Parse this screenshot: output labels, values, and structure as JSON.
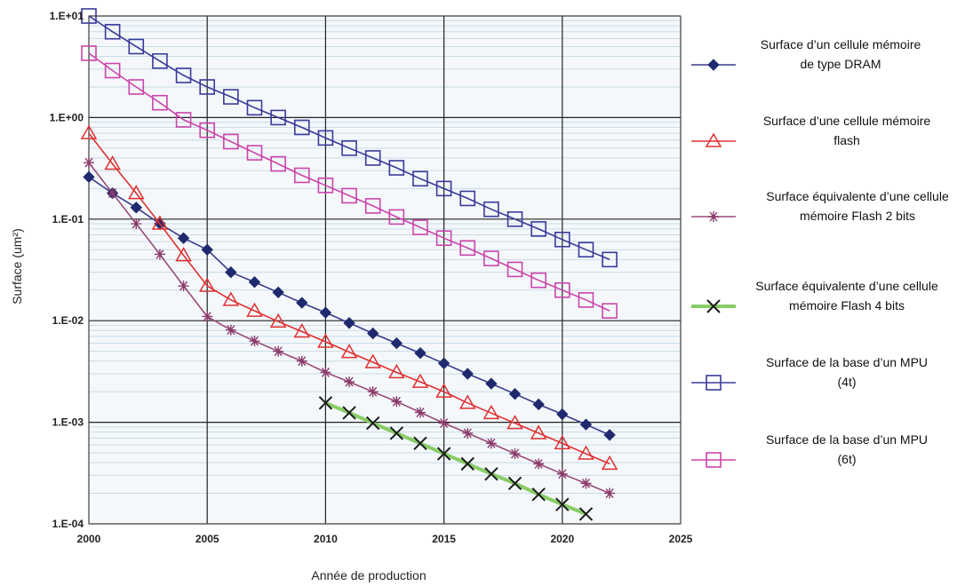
{
  "chart_data": {
    "type": "line",
    "xlabel": "Année de production",
    "ylabel": "Surface (um²)",
    "x_ticks": [
      2000,
      2005,
      2010,
      2015,
      2020,
      2025
    ],
    "y_ticks": [
      "1.E-04",
      "1.E-03",
      "1.E-02",
      "1.E-01",
      "1.E+00",
      "1.E+01"
    ],
    "xlim": [
      2000,
      2025
    ],
    "ylim": [
      0.0001,
      10
    ],
    "y_scale": "log",
    "grid": true,
    "legend_position": "right",
    "series": [
      {
        "name_lines": [
          "Surface d’un cellule mémoire",
          "de type DRAM"
        ],
        "color": "#1f2a6e",
        "marker": "diamond",
        "line_color": "#3a3a8a",
        "x": [
          2000,
          2001,
          2002,
          2003,
          2004,
          2005,
          2006,
          2007,
          2008,
          2009,
          2010,
          2011,
          2012,
          2013,
          2014,
          2015,
          2016,
          2017,
          2018,
          2019,
          2020,
          2021,
          2022
        ],
        "values": [
          0.26,
          0.18,
          0.13,
          0.09,
          0.065,
          0.05,
          0.03,
          0.024,
          0.019,
          0.015,
          0.012,
          0.0095,
          0.0075,
          0.006,
          0.0048,
          0.0038,
          0.003,
          0.0024,
          0.0019,
          0.0015,
          0.0012,
          0.00095,
          0.00075
        ]
      },
      {
        "name_lines": [
          "Surface d’une cellule mémoire",
          "flash"
        ],
        "color": "#e03030",
        "marker": "triangle",
        "line_color": "#e03030",
        "x": [
          2000,
          2001,
          2002,
          2003,
          2004,
          2005,
          2006,
          2007,
          2008,
          2009,
          2010,
          2011,
          2012,
          2013,
          2014,
          2015,
          2016,
          2017,
          2018,
          2019,
          2020,
          2021,
          2022
        ],
        "values": [
          0.7,
          0.35,
          0.18,
          0.09,
          0.044,
          0.022,
          0.016,
          0.0125,
          0.0098,
          0.0078,
          0.0062,
          0.0049,
          0.0039,
          0.0031,
          0.0025,
          0.002,
          0.00155,
          0.00123,
          0.00098,
          0.00078,
          0.00062,
          0.00049,
          0.00039
        ]
      },
      {
        "name_lines": [
          "Surface équivalente d’une cellule",
          "mémoire Flash 2 bits"
        ],
        "color": "#8a3a6a",
        "marker": "star",
        "line_color": "#9a4a7a",
        "x": [
          2000,
          2001,
          2002,
          2003,
          2004,
          2005,
          2006,
          2007,
          2008,
          2009,
          2010,
          2011,
          2012,
          2013,
          2014,
          2015,
          2016,
          2017,
          2018,
          2019,
          2020,
          2021,
          2022
        ],
        "values": [
          0.36,
          0.18,
          0.09,
          0.045,
          0.022,
          0.011,
          0.0081,
          0.0063,
          0.005,
          0.004,
          0.0031,
          0.0025,
          0.002,
          0.0016,
          0.00125,
          0.00098,
          0.00078,
          0.00062,
          0.00049,
          0.00039,
          0.00031,
          0.00025,
          0.0002
        ]
      },
      {
        "name_lines": [
          "Surface équivalente d’une cellule",
          "mémoire Flash 4 bits"
        ],
        "color": "#1a1a1a",
        "marker": "x",
        "line_color": "#88cc66",
        "x": [
          2010,
          2011,
          2012,
          2013,
          2014,
          2015,
          2016,
          2017,
          2018,
          2019,
          2020,
          2021
        ],
        "values": [
          0.00155,
          0.00124,
          0.00098,
          0.00078,
          0.00062,
          0.00049,
          0.00039,
          0.00031,
          0.00025,
          0.000195,
          0.000155,
          0.000125
        ]
      },
      {
        "name_lines": [
          "Surface de la base d’un MPU",
          "(4t)"
        ],
        "color": "#3a3a9a",
        "marker": "square",
        "line_color": "#3a3a9a",
        "x": [
          2000,
          2001,
          2002,
          2003,
          2004,
          2005,
          2006,
          2007,
          2008,
          2009,
          2010,
          2011,
          2012,
          2013,
          2014,
          2015,
          2016,
          2017,
          2018,
          2019,
          2020,
          2021,
          2022
        ],
        "values": [
          10,
          7.0,
          5.0,
          3.6,
          2.6,
          2.0,
          1.6,
          1.25,
          1.0,
          0.8,
          0.63,
          0.5,
          0.4,
          0.32,
          0.25,
          0.2,
          0.16,
          0.125,
          0.1,
          0.08,
          0.063,
          0.05,
          0.04
        ]
      },
      {
        "name_lines": [
          "Surface de la base d’un MPU",
          "(6t)"
        ],
        "color": "#cc44aa",
        "marker": "square",
        "line_color": "#cc44aa",
        "x": [
          2000,
          2001,
          2002,
          2003,
          2004,
          2005,
          2006,
          2007,
          2008,
          2009,
          2010,
          2011,
          2012,
          2013,
          2014,
          2015,
          2016,
          2017,
          2018,
          2019,
          2020,
          2021,
          2022
        ],
        "values": [
          4.3,
          2.9,
          2.0,
          1.4,
          0.95,
          0.75,
          0.58,
          0.45,
          0.35,
          0.27,
          0.215,
          0.17,
          0.135,
          0.105,
          0.083,
          0.065,
          0.052,
          0.041,
          0.032,
          0.025,
          0.02,
          0.016,
          0.0125
        ]
      }
    ]
  }
}
